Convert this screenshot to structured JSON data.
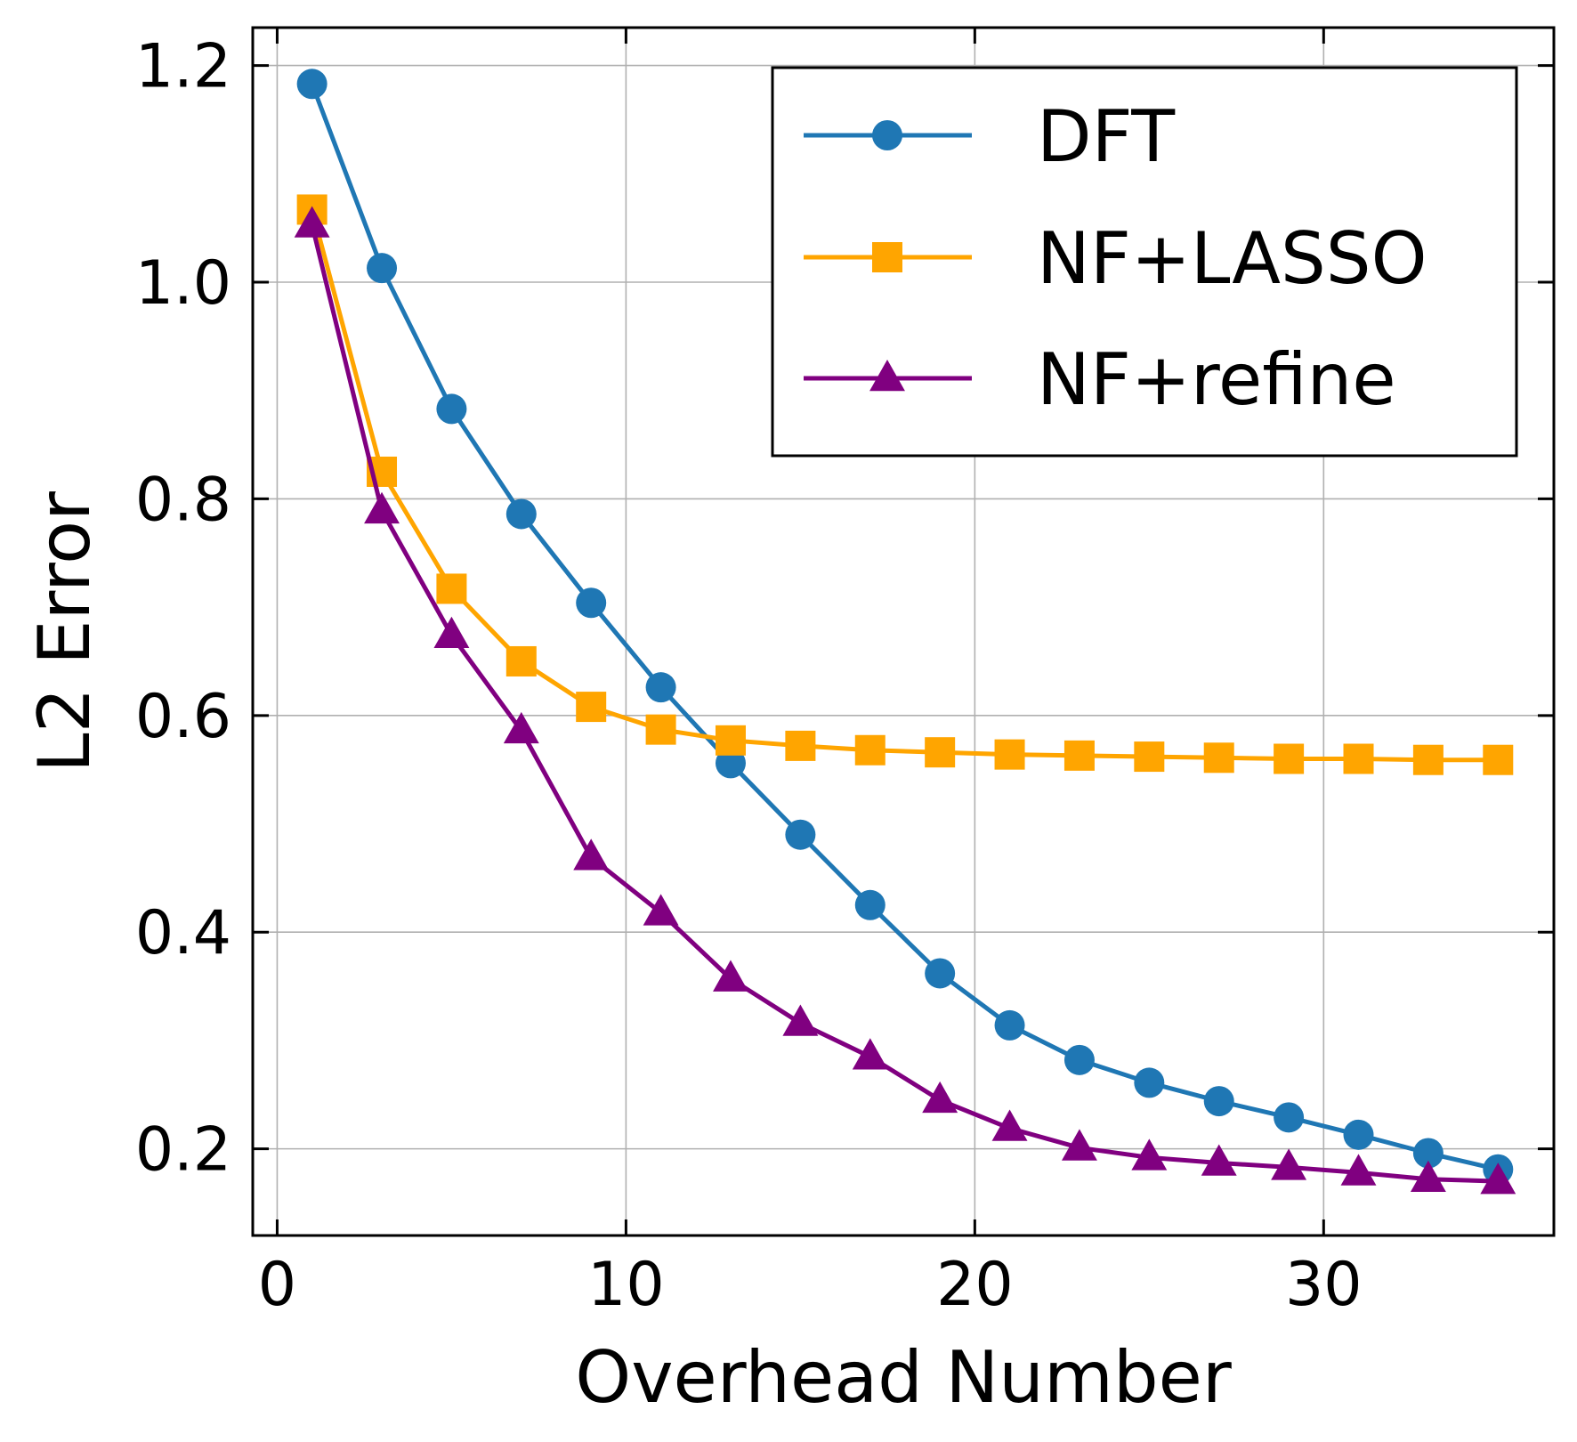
{
  "chart_data": {
    "type": "line",
    "title": "",
    "xlabel": "Overhead Number",
    "ylabel": "L2 Error",
    "xlim": [
      -0.7,
      36.6
    ],
    "ylim": [
      0.12,
      1.235
    ],
    "xticks": [
      0,
      10,
      20,
      30
    ],
    "xtick_labels": [
      "0",
      "10",
      "20",
      "30"
    ],
    "yticks": [
      0.2,
      0.4,
      0.6,
      0.8,
      1.0,
      1.2
    ],
    "ytick_labels": [
      "0.2",
      "0.4",
      "0.6",
      "0.8",
      "1.0",
      "1.2"
    ],
    "grid": true,
    "legend_position": "top-right",
    "x": [
      1,
      3,
      5,
      7,
      9,
      11,
      13,
      15,
      17,
      19,
      21,
      23,
      25,
      27,
      29,
      31,
      33,
      35
    ],
    "series": [
      {
        "name": "DFT",
        "color": "#1f77b4",
        "marker": "circle",
        "values": [
          1.183,
          1.013,
          0.883,
          0.786,
          0.704,
          0.626,
          0.556,
          0.49,
          0.425,
          0.362,
          0.314,
          0.282,
          0.261,
          0.244,
          0.229,
          0.213,
          0.196,
          0.181
        ]
      },
      {
        "name": "NF+LASSO",
        "color": "#ffa500",
        "marker": "square",
        "values": [
          1.067,
          0.825,
          0.717,
          0.65,
          0.608,
          0.587,
          0.577,
          0.572,
          0.568,
          0.566,
          0.564,
          0.563,
          0.562,
          0.561,
          0.56,
          0.56,
          0.559,
          0.559
        ]
      },
      {
        "name": "NF+refine",
        "color": "#800080",
        "marker": "triangle",
        "values": [
          1.053,
          0.789,
          0.674,
          0.586,
          0.469,
          0.418,
          0.357,
          0.316,
          0.285,
          0.245,
          0.219,
          0.201,
          0.192,
          0.187,
          0.183,
          0.178,
          0.172,
          0.17
        ]
      }
    ]
  }
}
